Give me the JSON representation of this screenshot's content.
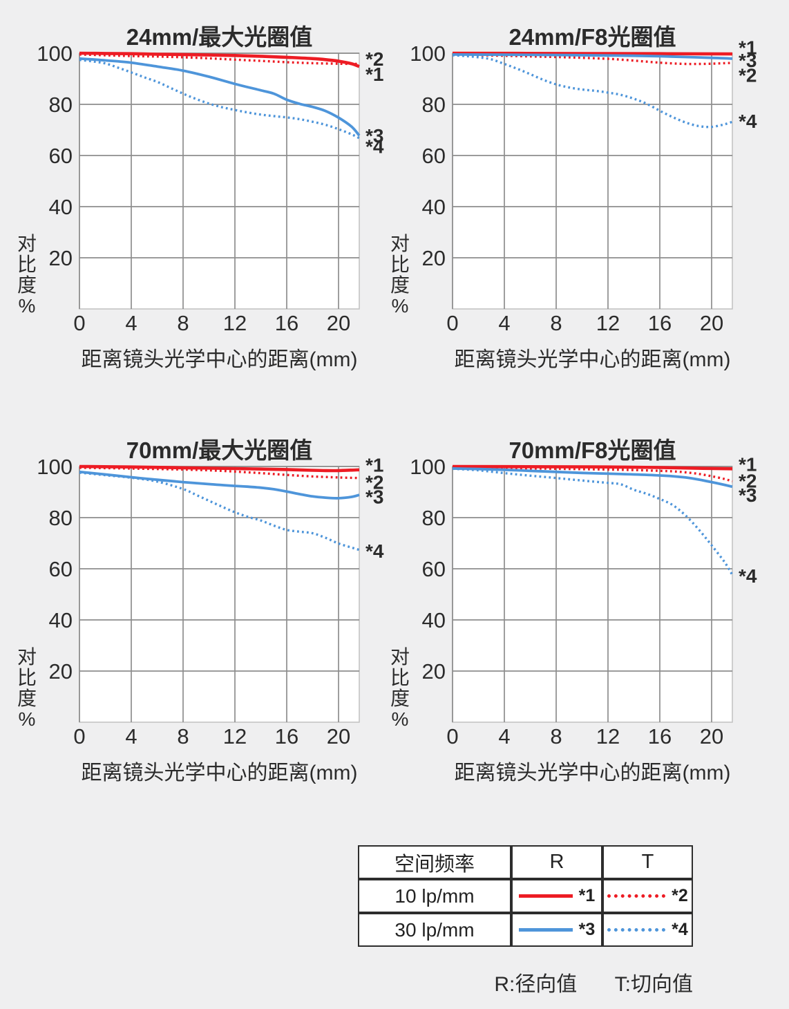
{
  "colors": {
    "red": "#ed1c24",
    "blue": "#4e95da",
    "grid": "#8d8d8d",
    "plot_border": "#c4c4c4",
    "plot_bg": "#ffffff",
    "page_bg": "#efeff0",
    "text": "#2b2b2b",
    "table_border": "#2d2d2d"
  },
  "axis": {
    "ylabel": "对比度%",
    "xlabel": "距离镜头光学中心的距离(mm)",
    "y_ticks": [
      100,
      80,
      60,
      40,
      20
    ],
    "x_ticks": [
      0,
      4,
      8,
      12,
      16,
      20
    ],
    "x_range": [
      0,
      21.6
    ],
    "y_range": [
      0,
      100
    ]
  },
  "chart_data": [
    {
      "type": "line",
      "title": "24mm/最大光圈值",
      "xlabel": "距离镜头光学中心的距离(mm)",
      "ylabel": "对比度%",
      "series": [
        {
          "name": "10 lp/mm R",
          "label": "*1",
          "color": "red",
          "style": "solid",
          "label_value": 91.9,
          "points": [
            [
              0,
              100
            ],
            [
              2,
              99.9
            ],
            [
              4,
              99.8
            ],
            [
              6,
              99.6
            ],
            [
              8,
              99.5
            ],
            [
              10,
              99.3
            ],
            [
              12,
              99.1
            ],
            [
              14,
              98.8
            ],
            [
              16,
              98.4
            ],
            [
              18,
              97.9
            ],
            [
              19,
              97.5
            ],
            [
              20,
              96.9
            ],
            [
              21,
              95.9
            ],
            [
              21.6,
              94.8
            ]
          ]
        },
        {
          "name": "10 lp/mm T",
          "label": "*2",
          "color": "red",
          "style": "dotted",
          "label_value": 97.8,
          "points": [
            [
              0,
              99.5
            ],
            [
              2,
              99.2
            ],
            [
              4,
              98.9
            ],
            [
              6,
              98.7
            ],
            [
              8,
              98.4
            ],
            [
              10,
              98.0
            ],
            [
              12,
              97.5
            ],
            [
              14,
              97.0
            ],
            [
              16,
              96.5
            ],
            [
              18,
              96.1
            ],
            [
              20,
              95.9
            ],
            [
              21.6,
              95.8
            ]
          ]
        },
        {
          "name": "30 lp/mm R",
          "label": "*3",
          "color": "blue",
          "style": "solid",
          "label_value": 67.8,
          "points": [
            [
              0,
              97.9
            ],
            [
              2,
              97.2
            ],
            [
              4,
              96.3
            ],
            [
              6,
              94.8
            ],
            [
              8,
              93.2
            ],
            [
              10,
              90.8
            ],
            [
              12,
              88.0
            ],
            [
              14,
              85.5
            ],
            [
              15,
              84.2
            ],
            [
              16,
              81.8
            ],
            [
              17,
              80.2
            ],
            [
              18,
              79.0
            ],
            [
              19,
              77.4
            ],
            [
              20,
              74.8
            ],
            [
              21,
              71.3
            ],
            [
              21.6,
              67.8
            ]
          ]
        },
        {
          "name": "30 lp/mm T",
          "label": "*4",
          "color": "blue",
          "style": "dotted",
          "label_value": 63.6,
          "points": [
            [
              0,
              97.4
            ],
            [
              1,
              96.8
            ],
            [
              2,
              96.0
            ],
            [
              3,
              94.3
            ],
            [
              4,
              92.5
            ],
            [
              5,
              90.6
            ],
            [
              6,
              88.8
            ],
            [
              7,
              86.5
            ],
            [
              8,
              84.2
            ],
            [
              9,
              82.1
            ],
            [
              10,
              80.3
            ],
            [
              11,
              78.9
            ],
            [
              12,
              77.8
            ],
            [
              13,
              76.8
            ],
            [
              14,
              76.0
            ],
            [
              15,
              75.4
            ],
            [
              16,
              74.9
            ],
            [
              17,
              74.2
            ],
            [
              18,
              73.2
            ],
            [
              19,
              72.0
            ],
            [
              20,
              70.3
            ],
            [
              21,
              68.3
            ],
            [
              21.6,
              66.8
            ]
          ]
        }
      ]
    },
    {
      "type": "line",
      "title": "24mm/F8光圈值",
      "xlabel": "距离镜头光学中心的距离(mm)",
      "ylabel": "对比度%",
      "series": [
        {
          "name": "10 lp/mm R",
          "label": "*1",
          "color": "red",
          "style": "solid",
          "label_value": 102.3,
          "points": [
            [
              0,
              100
            ],
            [
              8,
              99.9
            ],
            [
              16,
              99.8
            ],
            [
              21.6,
              99.7
            ]
          ]
        },
        {
          "name": "10 lp/mm T",
          "label": "*2",
          "color": "red",
          "style": "dotted",
          "label_value": 91.4,
          "points": [
            [
              0,
              99.4
            ],
            [
              4,
              99.0
            ],
            [
              8,
              98.5
            ],
            [
              10,
              98.2
            ],
            [
              12,
              97.8
            ],
            [
              13,
              97.5
            ],
            [
              14,
              97.1
            ],
            [
              15,
              96.7
            ],
            [
              16,
              96.3
            ],
            [
              17,
              96.0
            ],
            [
              18,
              95.8
            ],
            [
              19,
              95.8
            ],
            [
              20,
              95.9
            ],
            [
              21,
              96.1
            ],
            [
              21.6,
              96.2
            ]
          ]
        },
        {
          "name": "30 lp/mm R",
          "label": "*3",
          "color": "blue",
          "style": "solid",
          "label_value": 97.2,
          "points": [
            [
              0,
              99.5
            ],
            [
              4,
              99.4
            ],
            [
              8,
              99.3
            ],
            [
              12,
              99.1
            ],
            [
              14,
              99.0
            ],
            [
              16,
              98.8
            ],
            [
              18,
              98.5
            ],
            [
              20,
              98.2
            ],
            [
              21.6,
              97.9
            ]
          ]
        },
        {
          "name": "30 lp/mm T",
          "label": "*4",
          "color": "blue",
          "style": "dotted",
          "label_value": 73.4,
          "points": [
            [
              0,
              99.2
            ],
            [
              1,
              98.9
            ],
            [
              2,
              98.4
            ],
            [
              3,
              97.6
            ],
            [
              4,
              95.8
            ],
            [
              5,
              93.9
            ],
            [
              6,
              91.8
            ],
            [
              7,
              89.6
            ],
            [
              8,
              87.8
            ],
            [
              9,
              86.6
            ],
            [
              10,
              85.8
            ],
            [
              11,
              85.3
            ],
            [
              12,
              84.6
            ],
            [
              13,
              83.7
            ],
            [
              14,
              82.2
            ],
            [
              15,
              80.2
            ],
            [
              16,
              77.5
            ],
            [
              17,
              75.0
            ],
            [
              18,
              72.9
            ],
            [
              19,
              71.5
            ],
            [
              20,
              71.2
            ],
            [
              21,
              72.2
            ],
            [
              21.6,
              73.2
            ]
          ]
        }
      ]
    },
    {
      "type": "line",
      "title": "70mm/最大光圈值",
      "xlabel": "距离镜头光学中心的距离(mm)",
      "ylabel": "对比度%",
      "series": [
        {
          "name": "10 lp/mm R",
          "label": "*1",
          "color": "red",
          "style": "solid",
          "label_value": 100.6,
          "points": [
            [
              0,
              100
            ],
            [
              4,
              99.8
            ],
            [
              8,
              99.5
            ],
            [
              12,
              99.2
            ],
            [
              14,
              99.0
            ],
            [
              16,
              98.8
            ],
            [
              18,
              98.5
            ],
            [
              19,
              98.4
            ],
            [
              20,
              98.4
            ],
            [
              21.6,
              98.7
            ]
          ]
        },
        {
          "name": "10 lp/mm T",
          "label": "*2",
          "color": "red",
          "style": "dotted",
          "label_value": 93.9,
          "points": [
            [
              0,
              99.5
            ],
            [
              4,
              99.2
            ],
            [
              8,
              98.8
            ],
            [
              10,
              98.5
            ],
            [
              12,
              98.0
            ],
            [
              14,
              97.4
            ],
            [
              16,
              96.7
            ],
            [
              18,
              96.1
            ],
            [
              20,
              95.7
            ],
            [
              21.6,
              95.5
            ]
          ]
        },
        {
          "name": "30 lp/mm R",
          "label": "*3",
          "color": "blue",
          "style": "solid",
          "label_value": 88.2,
          "points": [
            [
              0,
              97.9
            ],
            [
              2,
              96.9
            ],
            [
              4,
              95.8
            ],
            [
              6,
              94.8
            ],
            [
              8,
              93.9
            ],
            [
              10,
              93.1
            ],
            [
              12,
              92.4
            ],
            [
              13,
              92.1
            ],
            [
              14,
              91.7
            ],
            [
              15,
              91.1
            ],
            [
              16,
              90.2
            ],
            [
              17,
              89.2
            ],
            [
              18,
              88.3
            ],
            [
              19,
              87.8
            ],
            [
              20,
              87.6
            ],
            [
              21,
              88.1
            ],
            [
              21.6,
              88.9
            ]
          ]
        },
        {
          "name": "30 lp/mm T",
          "label": "*4",
          "color": "blue",
          "style": "dotted",
          "label_value": 67.0,
          "points": [
            [
              0,
              97.6
            ],
            [
              2,
              96.6
            ],
            [
              4,
              95.6
            ],
            [
              6,
              94.1
            ],
            [
              8,
              91.2
            ],
            [
              9,
              88.9
            ],
            [
              10,
              86.6
            ],
            [
              11,
              84.3
            ],
            [
              12,
              82.1
            ],
            [
              13,
              80.3
            ],
            [
              14,
              78.9
            ],
            [
              15,
              76.9
            ],
            [
              16,
              75.2
            ],
            [
              17,
              74.5
            ],
            [
              18,
              73.9
            ],
            [
              19,
              72.1
            ],
            [
              20,
              69.9
            ],
            [
              21,
              68.3
            ],
            [
              21.6,
              67.4
            ]
          ]
        }
      ]
    },
    {
      "type": "line",
      "title": "70mm/F8光圈值",
      "xlabel": "距离镜头光学中心的距离(mm)",
      "ylabel": "对比度%",
      "series": [
        {
          "name": "10 lp/mm R",
          "label": "*1",
          "color": "red",
          "style": "solid",
          "label_value": 100.9,
          "points": [
            [
              0,
              100
            ],
            [
              8,
              99.9
            ],
            [
              12,
              99.8
            ],
            [
              16,
              99.6
            ],
            [
              19,
              99.3
            ],
            [
              21.6,
              99.1
            ]
          ]
        },
        {
          "name": "10 lp/mm T",
          "label": "*2",
          "color": "red",
          "style": "dotted",
          "label_value": 94.4,
          "points": [
            [
              0,
              99.6
            ],
            [
              4,
              99.4
            ],
            [
              8,
              99.1
            ],
            [
              12,
              98.8
            ],
            [
              14,
              98.6
            ],
            [
              16,
              98.3
            ],
            [
              17,
              98.1
            ],
            [
              18,
              97.7
            ],
            [
              19,
              97.1
            ],
            [
              20,
              96.2
            ],
            [
              21,
              95.1
            ],
            [
              21.6,
              94.2
            ]
          ]
        },
        {
          "name": "30 lp/mm R",
          "label": "*3",
          "color": "blue",
          "style": "solid",
          "label_value": 88.9,
          "points": [
            [
              0,
              99.2
            ],
            [
              2,
              99.0
            ],
            [
              4,
              98.7
            ],
            [
              6,
              98.3
            ],
            [
              8,
              97.9
            ],
            [
              10,
              97.5
            ],
            [
              12,
              97.2
            ],
            [
              14,
              96.9
            ],
            [
              16,
              96.5
            ],
            [
              17,
              96.2
            ],
            [
              18,
              95.7
            ],
            [
              19,
              94.9
            ],
            [
              20,
              93.9
            ],
            [
              21,
              92.8
            ],
            [
              21.6,
              92.1
            ]
          ]
        },
        {
          "name": "30 lp/mm T",
          "label": "*4",
          "color": "blue",
          "style": "dotted",
          "label_value": 57.3,
          "points": [
            [
              0,
              99.1
            ],
            [
              2,
              98.5
            ],
            [
              4,
              97.4
            ],
            [
              6,
              96.4
            ],
            [
              8,
              95.5
            ],
            [
              10,
              94.5
            ],
            [
              12,
              93.6
            ],
            [
              13,
              93.0
            ],
            [
              14,
              90.9
            ],
            [
              15,
              89.3
            ],
            [
              16,
              87.3
            ],
            [
              17,
              84.9
            ],
            [
              18,
              80.8
            ],
            [
              19,
              75.4
            ],
            [
              20,
              69.2
            ],
            [
              21,
              62.6
            ],
            [
              21.6,
              57.6
            ]
          ]
        }
      ]
    }
  ],
  "legend_table": {
    "headers": [
      "空间频率",
      "R",
      "T"
    ],
    "rows": [
      {
        "freq": "10 lp/mm",
        "color": "red",
        "r": {
          "style": "solid",
          "label": "*1"
        },
        "t": {
          "style": "dotted",
          "label": "*2"
        }
      },
      {
        "freq": "30 lp/mm",
        "color": "blue",
        "r": {
          "style": "solid",
          "label": "*3"
        },
        "t": {
          "style": "dotted",
          "label": "*4"
        }
      }
    ]
  },
  "footnote": {
    "r_label": "R:径向值",
    "t_label": "T:切向值"
  }
}
